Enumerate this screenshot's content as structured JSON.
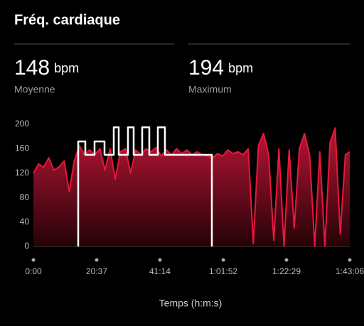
{
  "header": {
    "title": "Fréq. cardiaque"
  },
  "stats": [
    {
      "value": 148,
      "unit": "bpm",
      "label": "Moyenne"
    },
    {
      "value": 194,
      "unit": "bpm",
      "label": "Maximum"
    }
  ],
  "chart_data": {
    "type": "area",
    "x_label": "Temps (h:m:s)",
    "xlim": [
      0,
      6186
    ],
    "xticks": [
      {
        "value": 0,
        "label": "0:00"
      },
      {
        "value": 1237,
        "label": "20:37"
      },
      {
        "value": 2474,
        "label": "41:14"
      },
      {
        "value": 3712,
        "label": "1:01:52"
      },
      {
        "value": 4949,
        "label": "1:22:29"
      },
      {
        "value": 6186,
        "label": "1:43:06"
      }
    ],
    "ylim": [
      0,
      200
    ],
    "yticks": [
      0,
      40,
      80,
      120,
      160,
      200
    ],
    "series": [
      {
        "color": "#e8173c",
        "x": [
          0,
          100,
          200,
          300,
          400,
          500,
          600,
          700,
          800,
          900,
          1000,
          1100,
          1200,
          1300,
          1400,
          1500,
          1600,
          1700,
          1800,
          1900,
          2000,
          2100,
          2200,
          2300,
          2400,
          2500,
          2600,
          2700,
          2800,
          2900,
          3000,
          3100,
          3200,
          3300,
          3400,
          3500,
          3600,
          3700,
          3800,
          3900,
          4000,
          4100,
          4200,
          4300,
          4400,
          4500,
          4600,
          4700,
          4800,
          4900,
          5000,
          5100,
          5200,
          5300,
          5400,
          5500,
          5600,
          5700,
          5800,
          5900,
          6000,
          6100,
          6186
        ],
        "values": [
          120,
          135,
          130,
          145,
          125,
          130,
          140,
          90,
          140,
          165,
          150,
          158,
          150,
          160,
          125,
          160,
          110,
          155,
          160,
          120,
          158,
          150,
          160,
          155,
          162,
          148,
          158,
          150,
          160,
          152,
          158,
          150,
          155,
          150,
          148,
          145,
          152,
          148,
          158,
          152,
          155,
          150,
          160,
          5,
          165,
          185,
          150,
          10,
          160,
          0,
          158,
          30,
          160,
          185,
          150,
          0,
          155,
          0,
          170,
          194,
          20,
          150,
          155
        ]
      },
      {
        "color": "#ffffff",
        "step": true,
        "x": [
          876,
          876,
          1015,
          1015,
          1195,
          1195,
          1390,
          1390,
          1571,
          1571,
          1668,
          1668,
          1849,
          1849,
          1960,
          1960,
          2127,
          2127,
          2266,
          2266,
          2433,
          2433,
          2572,
          2572,
          3489,
          3489
        ],
        "values": [
          0,
          172,
          172,
          150,
          150,
          172,
          172,
          150,
          150,
          195,
          195,
          150,
          150,
          195,
          195,
          150,
          150,
          195,
          195,
          150,
          150,
          195,
          195,
          150,
          150,
          0
        ]
      }
    ]
  }
}
